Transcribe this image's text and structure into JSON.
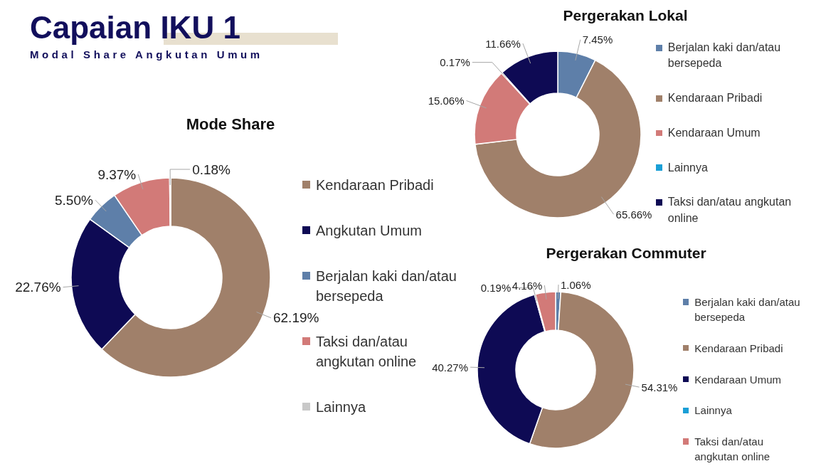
{
  "chart_data": [
    {
      "type": "other",
      "title": "Capaian IKU 1",
      "subtitle": "Modal Share Angkutan Umum"
    },
    {
      "type": "donut",
      "title": "Mode Share",
      "legend": "right",
      "categories": [
        "Kendaraan Pribadi",
        "Angkutan Umum",
        "Berjalan kaki dan/atau bersepeda",
        "Taksi dan/atau angkutan online",
        "Lainnya"
      ],
      "values": [
        62.19,
        22.76,
        5.5,
        9.37,
        0.18
      ],
      "value_labels": [
        "62.19%",
        "22.76%",
        "5.50%",
        "9.37%",
        "0.18%"
      ],
      "colors": [
        "#a0806a",
        "#0e0a54",
        "#5e7fa9",
        "#d27a78",
        "#c8c8c8"
      ]
    },
    {
      "type": "donut",
      "title": "Pergerakan Lokal",
      "legend": "right",
      "categories": [
        "Berjalan kaki dan/atau bersepeda",
        "Kendaraan Pribadi",
        "Kendaraan Umum",
        "Lainnya",
        "Taksi dan/atau angkutan online"
      ],
      "values": [
        7.45,
        65.66,
        15.06,
        0.17,
        11.66
      ],
      "value_labels": [
        "7.45%",
        "65.66%",
        "15.06%",
        "0.17%",
        "11.66%"
      ],
      "colors": [
        "#5e7fa9",
        "#a0806a",
        "#d27a78",
        "#1a9fd6",
        "#0e0a54"
      ]
    },
    {
      "type": "donut",
      "title": "Pergerakan Commuter",
      "legend": "right",
      "categories": [
        "Berjalan kaki dan/atau bersepeda",
        "Kendaraan Pribadi",
        "Kendaraan Umum",
        "Lainnya",
        "Taksi dan/atau angkutan online"
      ],
      "values": [
        1.06,
        54.31,
        40.27,
        0.19,
        4.16
      ],
      "value_labels": [
        "1.06%",
        "54.31%",
        "40.27%",
        "0.19%",
        "4.16%"
      ],
      "colors": [
        "#5e7fa9",
        "#a0806a",
        "#0e0a54",
        "#1a9fd6",
        "#d27a78"
      ]
    }
  ]
}
